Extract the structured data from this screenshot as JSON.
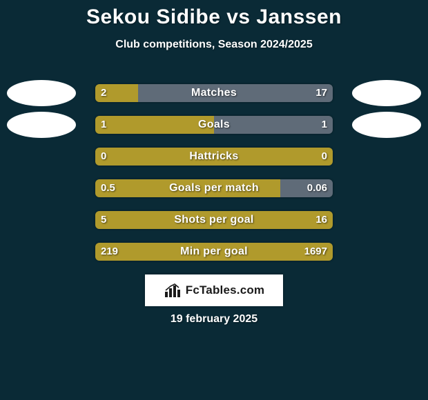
{
  "colors": {
    "background": "#0a2a36",
    "text": "#ffffff",
    "bar_left": "#b09a2c",
    "bar_right": "#5f6b78",
    "avatar": "#ffffff",
    "brand_bg": "#ffffff",
    "brand_text": "#1a1a1a"
  },
  "title": "Sekou Sidibe vs Janssen",
  "subtitle": "Club competitions, Season 2024/2025",
  "stats": [
    {
      "label": "Matches",
      "left_val": "2",
      "right_val": "17",
      "left_pct": 18,
      "right_pct": 82
    },
    {
      "label": "Goals",
      "left_val": "1",
      "right_val": "1",
      "left_pct": 50,
      "right_pct": 50
    },
    {
      "label": "Hattricks",
      "left_val": "0",
      "right_val": "0",
      "left_pct": 100,
      "right_pct": 0
    },
    {
      "label": "Goals per match",
      "left_val": "0.5",
      "right_val": "0.06",
      "left_pct": 78,
      "right_pct": 22
    },
    {
      "label": "Shots per goal",
      "left_val": "5",
      "right_val": "16",
      "left_pct": 100,
      "right_pct": 0
    },
    {
      "label": "Min per goal",
      "left_val": "219",
      "right_val": "1697",
      "left_pct": 100,
      "right_pct": 0
    }
  ],
  "avatars": [
    {
      "row": 0,
      "side": "left"
    },
    {
      "row": 0,
      "side": "right"
    },
    {
      "row": 1,
      "side": "left"
    },
    {
      "row": 1,
      "side": "right"
    }
  ],
  "brand": "FcTables.com",
  "date": "19 february 2025"
}
